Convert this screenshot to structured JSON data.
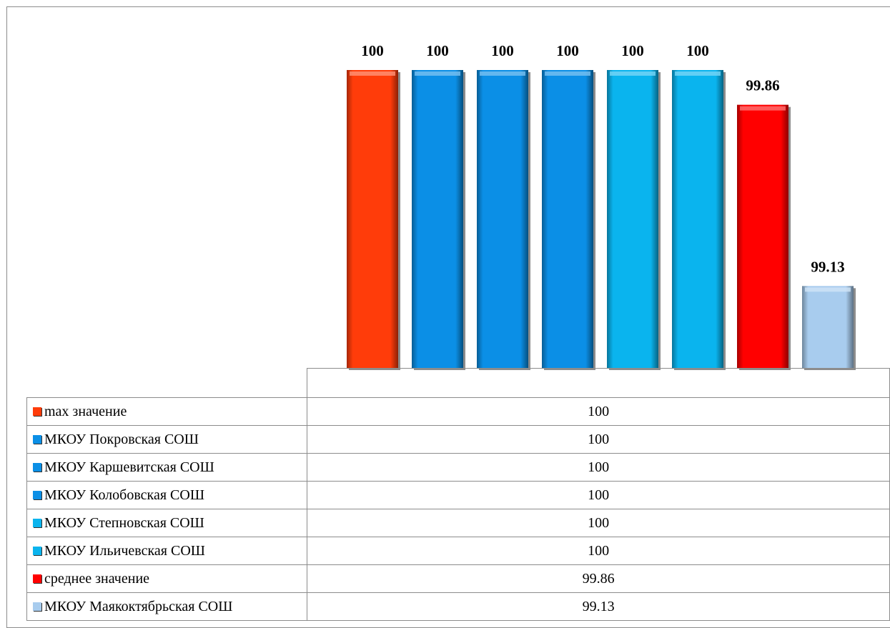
{
  "chart_data": {
    "type": "bar",
    "categories": [
      "max значение",
      "МКОУ Покровская СОШ",
      "МКОУ Каршевитская СОШ",
      "МКОУ Колобовская СОШ",
      "МКОУ Степновская СОШ",
      "МКОУ Ильичевская СОШ",
      "среднее значение",
      "МКОУ Маякоктябрьская СОШ"
    ],
    "values": [
      100,
      100,
      100,
      100,
      100,
      100,
      99.86,
      99.13
    ],
    "value_labels": [
      "100",
      "100",
      "100",
      "100",
      "100",
      "100",
      "99.86",
      "99.13"
    ],
    "colors": [
      "#ff3c0a",
      "#0b8fe6",
      "#0b8fe6",
      "#0b8fe6",
      "#0ab4ee",
      "#0ab4ee",
      "#ff0000",
      "#a8ccee"
    ],
    "ylim": [
      98.8,
      100
    ],
    "title": "",
    "xlabel": "",
    "ylabel": "",
    "grid": false,
    "legend": "table below chart"
  }
}
